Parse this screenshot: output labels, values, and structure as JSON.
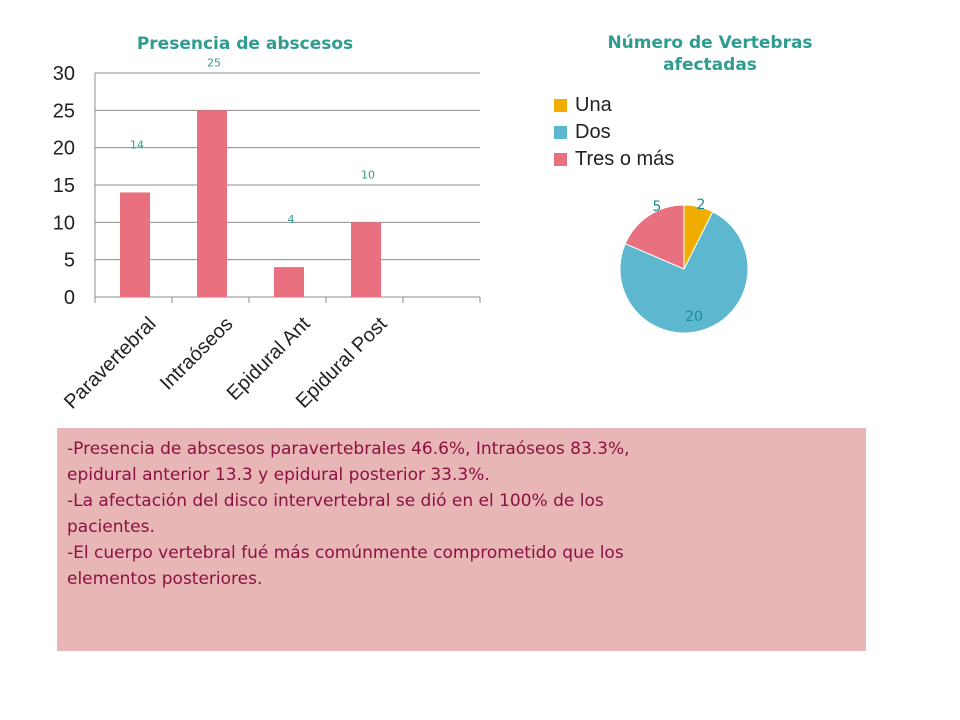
{
  "chart_data": [
    {
      "type": "bar",
      "title": "Presencia de abscesos",
      "categories": [
        "Paravertebral",
        "Intraóseos",
        "Epidural Ant",
        "Epidural Post"
      ],
      "values": [
        14,
        25,
        4,
        10
      ],
      "data_labels": [
        "14",
        "25",
        "4",
        "10"
      ],
      "ylim": [
        0,
        30
      ],
      "y_ticks": [
        0,
        5,
        10,
        15,
        20,
        25,
        30
      ],
      "xlabel": "",
      "ylabel": "",
      "grid": true,
      "bar_color": "#e8707f",
      "label_color": "#2e9d8f"
    },
    {
      "type": "pie",
      "title": "Número de Vertebras afectadas",
      "legend_position": "top-left",
      "slices": [
        {
          "name": "Una",
          "value": 2,
          "label": "2",
          "color": "#f0ad00"
        },
        {
          "name": "Dos",
          "value": 20,
          "label": "20",
          "color": "#5db7cf"
        },
        {
          "name": "Tres o más",
          "value": 5,
          "label": "5",
          "color": "#e8707f"
        }
      ]
    }
  ],
  "notes": [
    "-Presencia de abscesos paravertebrales 46.6%, Intraóseos 83.3%,",
    "epidural anterior 13.3 y epidural posterior 33.3%.",
    "-La afectación del disco intervertebral se dió en el 100% de los",
    "pacientes.",
    "-El cuerpo vertebral fué más comúnmente comprometido que los",
    "elementos posteriores."
  ]
}
